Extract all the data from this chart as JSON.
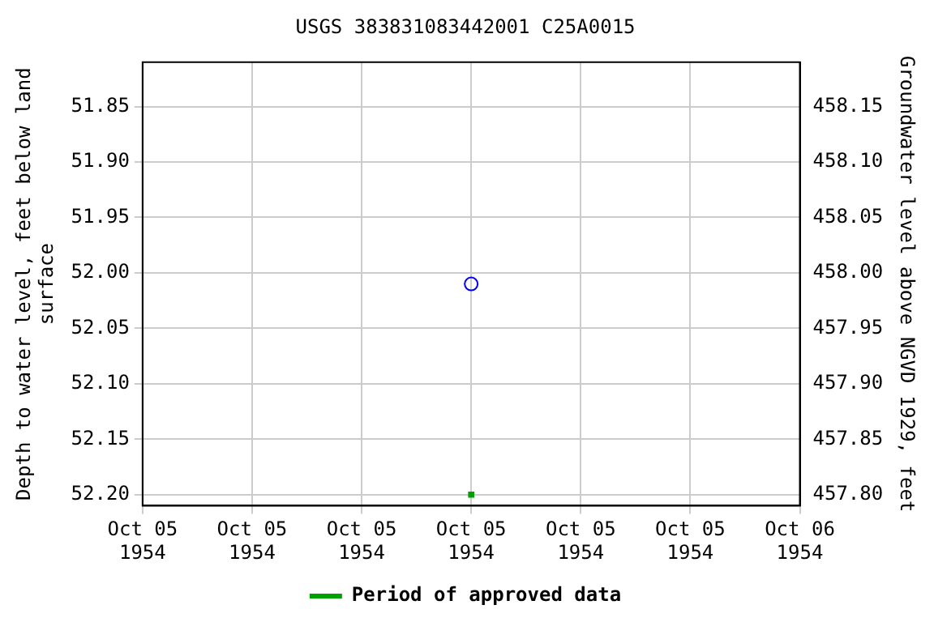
{
  "chart_data": {
    "type": "scatter",
    "title": "USGS 383831083442001 C25A0015",
    "ylabel": "Depth to water level, feet below land surface",
    "y2label": "Groundwater level above NGVD 1929, feet",
    "x": [
      "1954-10-05T12:00"
    ],
    "series": [
      {
        "color": "#0000ff",
        "values": [
          52.01
        ],
        "marker": "circle"
      },
      {
        "name": "Period of approved data",
        "color": "#00a000",
        "values": [
          52.2
        ],
        "marker": "square"
      }
    ],
    "xlim": [
      "1954-10-05T00:00",
      "1954-10-06T00:00"
    ],
    "xticks": [
      {
        "value": "1954-10-05T00:00",
        "label": "Oct 05\n1954"
      },
      {
        "value": "1954-10-05T04:00",
        "label": "Oct 05\n1954"
      },
      {
        "value": "1954-10-05T08:00",
        "label": "Oct 05\n1954"
      },
      {
        "value": "1954-10-05T12:00",
        "label": "Oct 05\n1954"
      },
      {
        "value": "1954-10-05T16:00",
        "label": "Oct 05\n1954"
      },
      {
        "value": "1954-10-05T20:00",
        "label": "Oct 05\n1954"
      },
      {
        "value": "1954-10-06T00:00",
        "label": "Oct 06\n1954"
      }
    ],
    "ylim": [
      52.21,
      51.81
    ],
    "yticks": [
      {
        "value": 51.85,
        "label": "51.85"
      },
      {
        "value": 51.9,
        "label": "51.90"
      },
      {
        "value": 51.95,
        "label": "51.95"
      },
      {
        "value": 52.0,
        "label": "52.00"
      },
      {
        "value": 52.05,
        "label": "52.05"
      },
      {
        "value": 52.1,
        "label": "52.10"
      },
      {
        "value": 52.15,
        "label": "52.15"
      },
      {
        "value": 52.2,
        "label": "52.20"
      }
    ],
    "y2lim": [
      457.79,
      458.19
    ],
    "y2ticks": [
      {
        "value": 457.8,
        "label": "457.80"
      },
      {
        "value": 457.85,
        "label": "457.85"
      },
      {
        "value": 457.9,
        "label": "457.90"
      },
      {
        "value": 457.95,
        "label": "457.95"
      },
      {
        "value": 458.0,
        "label": "458.00"
      },
      {
        "value": 458.05,
        "label": "458.05"
      },
      {
        "value": 458.1,
        "label": "458.10"
      },
      {
        "value": 458.15,
        "label": "458.15"
      }
    ],
    "grid": true,
    "legend": "bottom"
  }
}
